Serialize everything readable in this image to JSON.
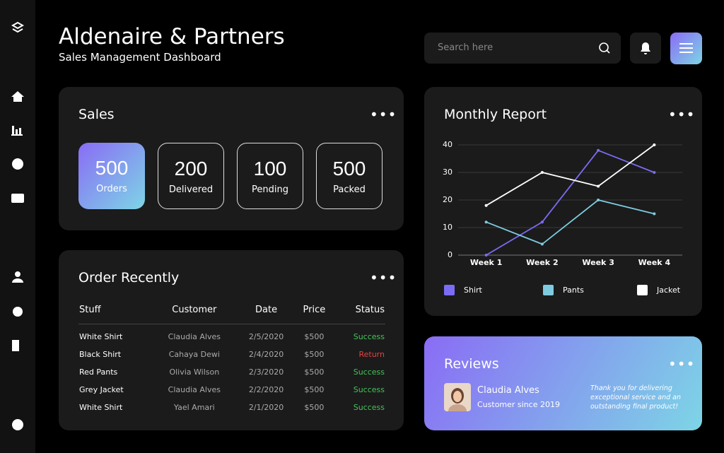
{
  "header": {
    "title": "Aldenaire & Partners",
    "subtitle": "Sales Management Dashboard",
    "search_placeholder": "Search here"
  },
  "sales": {
    "title": "Sales",
    "stats": [
      {
        "value": 500,
        "label": "Orders"
      },
      {
        "value": 200,
        "label": "Delivered"
      },
      {
        "value": 100,
        "label": "Pending"
      },
      {
        "value": 500,
        "label": "Packed"
      }
    ]
  },
  "orders": {
    "title": "Order Recently",
    "columns": [
      "Stuff",
      "Customer",
      "Date",
      "Price",
      "Status"
    ],
    "rows": [
      [
        "White Shirt",
        "Claudia Alves",
        "2/5/2020",
        "$500",
        "Success"
      ],
      [
        "Black Shirt",
        "Cahaya Dewi",
        "2/4/2020",
        "$500",
        "Return"
      ],
      [
        "Red Pants",
        "Olivia Wilson",
        "2/3/2020",
        "$500",
        "Success"
      ],
      [
        "Grey Jacket",
        "Claudia Alves",
        "2/2/2020",
        "$500",
        "Success"
      ],
      [
        "White Shirt",
        "Yael Amari",
        "2/1/2020",
        "$500",
        "Success"
      ]
    ]
  },
  "reviews": {
    "title": "Reviews",
    "name": "Claudia Alves",
    "since": "Customer since 2019",
    "quote": "Thank you for delivering exceptional service and an outstanding final product!"
  },
  "chart_data": {
    "type": "line",
    "title": "Monthly Report",
    "categories": [
      "Week 1",
      "Week 2",
      "Week 3",
      "Week 4"
    ],
    "series": [
      {
        "name": "Shirt",
        "color": "#7b6cf6",
        "values": [
          0,
          12,
          38,
          30
        ]
      },
      {
        "name": "Pants",
        "color": "#7ecbe0",
        "values": [
          12,
          4,
          20,
          15
        ]
      },
      {
        "name": "Jacket",
        "color": "#ffffff",
        "values": [
          18,
          30,
          25,
          40
        ]
      }
    ],
    "ylim": [
      0,
      40
    ],
    "yticks": [
      0,
      10,
      20,
      30,
      40
    ],
    "grid": true
  }
}
